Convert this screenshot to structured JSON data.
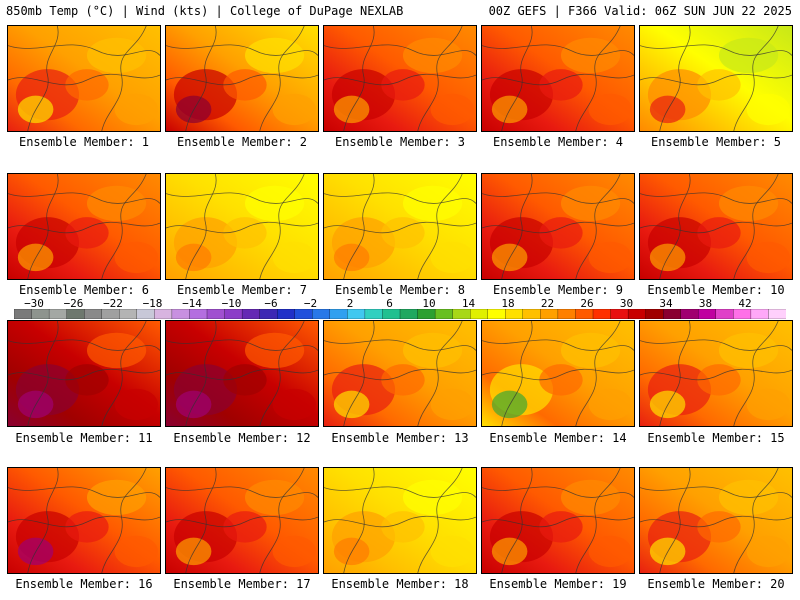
{
  "header": {
    "left": "850mb Temp (°C) | Wind (kts) | College of DuPage NEXLAB",
    "right": "00Z GEFS | F366 Valid: 06Z SUN JUN 22 2025"
  },
  "colorbar": {
    "labels": [
      "−30",
      "−26",
      "−22",
      "−18",
      "−14",
      "−10",
      "−6",
      "−2",
      "2",
      "6",
      "10",
      "14",
      "18",
      "22",
      "26",
      "30",
      "34",
      "38",
      "42"
    ],
    "colors": [
      "#7a7a7a",
      "#8e948e",
      "#a4a8a4",
      "#6e786e",
      "#8a8a8a",
      "#a0a0a0",
      "#b4b4b4",
      "#c8c8d8",
      "#d8b4e0",
      "#c890e0",
      "#b46ee0",
      "#a050d0",
      "#8c3cc8",
      "#6428b4",
      "#3c28b4",
      "#2030c8",
      "#2050dc",
      "#2878e8",
      "#30a0f0",
      "#40c8f0",
      "#30d0c0",
      "#20c090",
      "#20a860",
      "#2ca030",
      "#68c020",
      "#a8d818",
      "#e0f000",
      "#ffff00",
      "#ffe000",
      "#ffc000",
      "#ffa000",
      "#ff8000",
      "#ff5a00",
      "#ff3000",
      "#e81010",
      "#c80000",
      "#a00000",
      "#8a0030",
      "#a00070",
      "#c000a0",
      "#e040c8",
      "#ff70e8",
      "#ffa8f8",
      "#ffd0fc"
    ]
  },
  "panels": [
    {
      "caption": "Ensemble Member: 1",
      "scheme": "mix"
    },
    {
      "caption": "Ensemble Member: 2",
      "scheme": "westhot"
    },
    {
      "caption": "Ensemble Member: 3",
      "scheme": "hot"
    },
    {
      "caption": "Ensemble Member: 4",
      "scheme": "hot"
    },
    {
      "caption": "Ensemble Member: 5",
      "scheme": "cool"
    },
    {
      "caption": "Ensemble Member: 6",
      "scheme": "hot"
    },
    {
      "caption": "Ensemble Member: 7",
      "scheme": "mild"
    },
    {
      "caption": "Ensemble Member: 8",
      "scheme": "mild"
    },
    {
      "caption": "Ensemble Member: 9",
      "scheme": "hot"
    },
    {
      "caption": "Ensemble Member: 10",
      "scheme": "hot"
    },
    {
      "caption": "Ensemble Member: 11",
      "scheme": "veryhot"
    },
    {
      "caption": "Ensemble Member: 12",
      "scheme": "veryhot"
    },
    {
      "caption": "Ensemble Member: 13",
      "scheme": "mix"
    },
    {
      "caption": "Ensemble Member: 14",
      "scheme": "east"
    },
    {
      "caption": "Ensemble Member: 15",
      "scheme": "mix"
    },
    {
      "caption": "Ensemble Member: 16",
      "scheme": "hotcore"
    },
    {
      "caption": "Ensemble Member: 17",
      "scheme": "hot"
    },
    {
      "caption": "Ensemble Member: 18",
      "scheme": "mild"
    },
    {
      "caption": "Ensemble Member: 19",
      "scheme": "hot"
    },
    {
      "caption": "Ensemble Member: 20",
      "scheme": "mix"
    }
  ]
}
